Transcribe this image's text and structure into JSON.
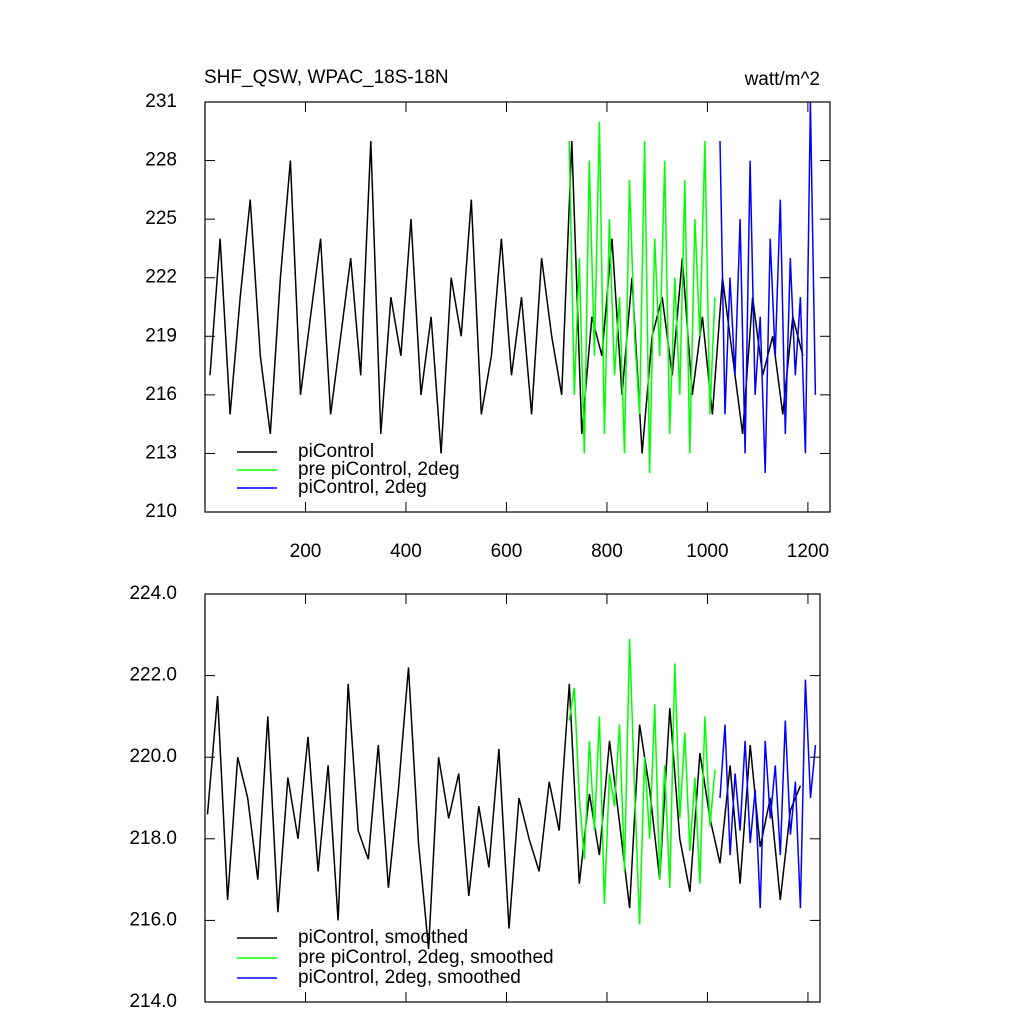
{
  "chart_data": [
    {
      "type": "line",
      "title": "SHF_QSW, WPAC_18S-18N",
      "units": "watt/m^2",
      "xlim": [
        0,
        1244
      ],
      "ylim": [
        210,
        231
      ],
      "xticks": [
        200,
        400,
        600,
        800,
        1000,
        1200
      ],
      "yticks": [
        210,
        213,
        216,
        219,
        222,
        225,
        228,
        231
      ],
      "legend": "lower left",
      "series": [
        {
          "name": "piControl",
          "color": "#000000",
          "x": [
            10,
            30,
            50,
            70,
            90,
            110,
            130,
            150,
            170,
            190,
            210,
            230,
            250,
            270,
            290,
            310,
            330,
            350,
            370,
            390,
            410,
            430,
            450,
            470,
            490,
            510,
            530,
            550,
            570,
            590,
            610,
            630,
            650,
            670,
            690,
            710,
            730,
            750,
            770,
            790,
            810,
            830,
            850,
            870,
            890,
            910,
            930,
            950,
            970,
            990,
            1010,
            1030,
            1050,
            1070,
            1090,
            1110,
            1130,
            1150,
            1170,
            1190
          ],
          "values": [
            217,
            224,
            215,
            221,
            226,
            218,
            214,
            222,
            228,
            216,
            220,
            224,
            215,
            219,
            223,
            217,
            229,
            214,
            221,
            218,
            225,
            216,
            220,
            213,
            222,
            219,
            226,
            215,
            218,
            224,
            217,
            221,
            215,
            223,
            219,
            216,
            229,
            214,
            220,
            218,
            224,
            216,
            222,
            213,
            219,
            221,
            217,
            223,
            216,
            220,
            215,
            222,
            218,
            214,
            221,
            217,
            219,
            215,
            220,
            218
          ]
        },
        {
          "name": "pre piControl, 2deg",
          "color": "#00ff00",
          "x": [
            725,
            735,
            745,
            755,
            765,
            775,
            785,
            795,
            805,
            815,
            825,
            835,
            845,
            855,
            865,
            875,
            885,
            895,
            905,
            915,
            925,
            935,
            945,
            955,
            965,
            975,
            985,
            995,
            1005,
            1015
          ],
          "values": [
            229,
            216,
            223,
            213,
            228,
            218,
            230,
            214,
            225,
            217,
            221,
            213,
            227,
            219,
            215,
            229,
            212,
            224,
            218,
            228,
            214,
            222,
            216,
            227,
            213,
            225,
            219,
            229,
            215,
            221
          ]
        },
        {
          "name": "piControl, 2deg",
          "color": "#0000ff",
          "x": [
            1025,
            1035,
            1045,
            1055,
            1065,
            1075,
            1085,
            1095,
            1105,
            1115,
            1125,
            1135,
            1145,
            1155,
            1165,
            1175,
            1185,
            1195,
            1205,
            1215
          ],
          "values": [
            229,
            215,
            222,
            217,
            225,
            213,
            228,
            216,
            220,
            212,
            224,
            218,
            226,
            214,
            223,
            217,
            221,
            213,
            231,
            216
          ]
        }
      ]
    },
    {
      "type": "line",
      "xlim": [
        0,
        1224
      ],
      "ylim": [
        214,
        224
      ],
      "xticks": [
        200,
        400,
        600,
        800,
        1000,
        1200
      ],
      "yticks": [
        {
          "value": 214,
          "label": "214.0"
        },
        {
          "value": 216,
          "label": "216.0"
        },
        {
          "value": 218,
          "label": "218.0"
        },
        {
          "value": 220,
          "label": "220.0"
        },
        {
          "value": 222,
          "label": "222.0"
        },
        {
          "value": 224,
          "label": "224.0"
        }
      ],
      "legend": "lower left",
      "series": [
        {
          "name": "piControl, smoothed",
          "color": "#000000",
          "x": [
            5,
            25,
            45,
            65,
            85,
            105,
            125,
            145,
            165,
            185,
            205,
            225,
            245,
            265,
            285,
            305,
            325,
            345,
            365,
            385,
            405,
            425,
            445,
            465,
            485,
            505,
            525,
            545,
            565,
            585,
            605,
            625,
            645,
            665,
            685,
            705,
            725,
            745,
            765,
            785,
            805,
            825,
            845,
            865,
            885,
            905,
            925,
            945,
            965,
            985,
            1005,
            1025,
            1045,
            1065,
            1085,
            1105,
            1125,
            1145,
            1165,
            1185
          ],
          "values": [
            218.6,
            221.5,
            216.5,
            220.0,
            219.0,
            217.0,
            221.0,
            216.2,
            219.5,
            218.0,
            220.5,
            217.2,
            219.8,
            216.0,
            221.8,
            218.2,
            217.5,
            220.3,
            216.8,
            219.2,
            222.2,
            217.9,
            215.3,
            220.0,
            218.5,
            219.6,
            216.6,
            218.8,
            217.3,
            220.2,
            215.8,
            219.0,
            218.0,
            217.2,
            219.4,
            218.2,
            221.8,
            216.9,
            219.1,
            217.6,
            220.4,
            218.4,
            216.3,
            220.8,
            219.2,
            217.0,
            221.2,
            218.0,
            216.7,
            220.1,
            218.5,
            217.4,
            219.8,
            216.9,
            220.3,
            217.8,
            219.0,
            216.5,
            218.7,
            219.3
          ]
        },
        {
          "name": "pre piControl, 2deg, smoothed",
          "color": "#00ff00",
          "x": [
            725,
            735,
            745,
            755,
            765,
            775,
            785,
            795,
            805,
            815,
            825,
            835,
            845,
            855,
            865,
            875,
            885,
            895,
            905,
            915,
            925,
            935,
            945,
            955,
            965,
            975,
            985,
            995,
            1005,
            1015
          ],
          "values": [
            220.9,
            221.7,
            219.0,
            217.5,
            220.4,
            218.2,
            221.0,
            216.4,
            219.6,
            218.8,
            220.8,
            217.2,
            222.9,
            219.2,
            215.9,
            220.0,
            218.0,
            221.3,
            217.0,
            219.8,
            216.8,
            222.3,
            218.5,
            220.6,
            217.7,
            219.5,
            216.9,
            221.0,
            218.3,
            219.7
          ]
        },
        {
          "name": "piControl, 2deg, smoothed",
          "color": "#0000ff",
          "x": [
            1025,
            1035,
            1045,
            1055,
            1065,
            1075,
            1085,
            1095,
            1105,
            1115,
            1125,
            1135,
            1145,
            1155,
            1165,
            1175,
            1185,
            1195,
            1205,
            1215
          ],
          "values": [
            219.0,
            220.8,
            217.6,
            219.6,
            218.2,
            220.4,
            217.9,
            219.2,
            216.3,
            220.4,
            218.5,
            219.8,
            217.6,
            220.9,
            218.1,
            219.4,
            216.3,
            221.9,
            219.0,
            220.3
          ]
        }
      ]
    }
  ]
}
